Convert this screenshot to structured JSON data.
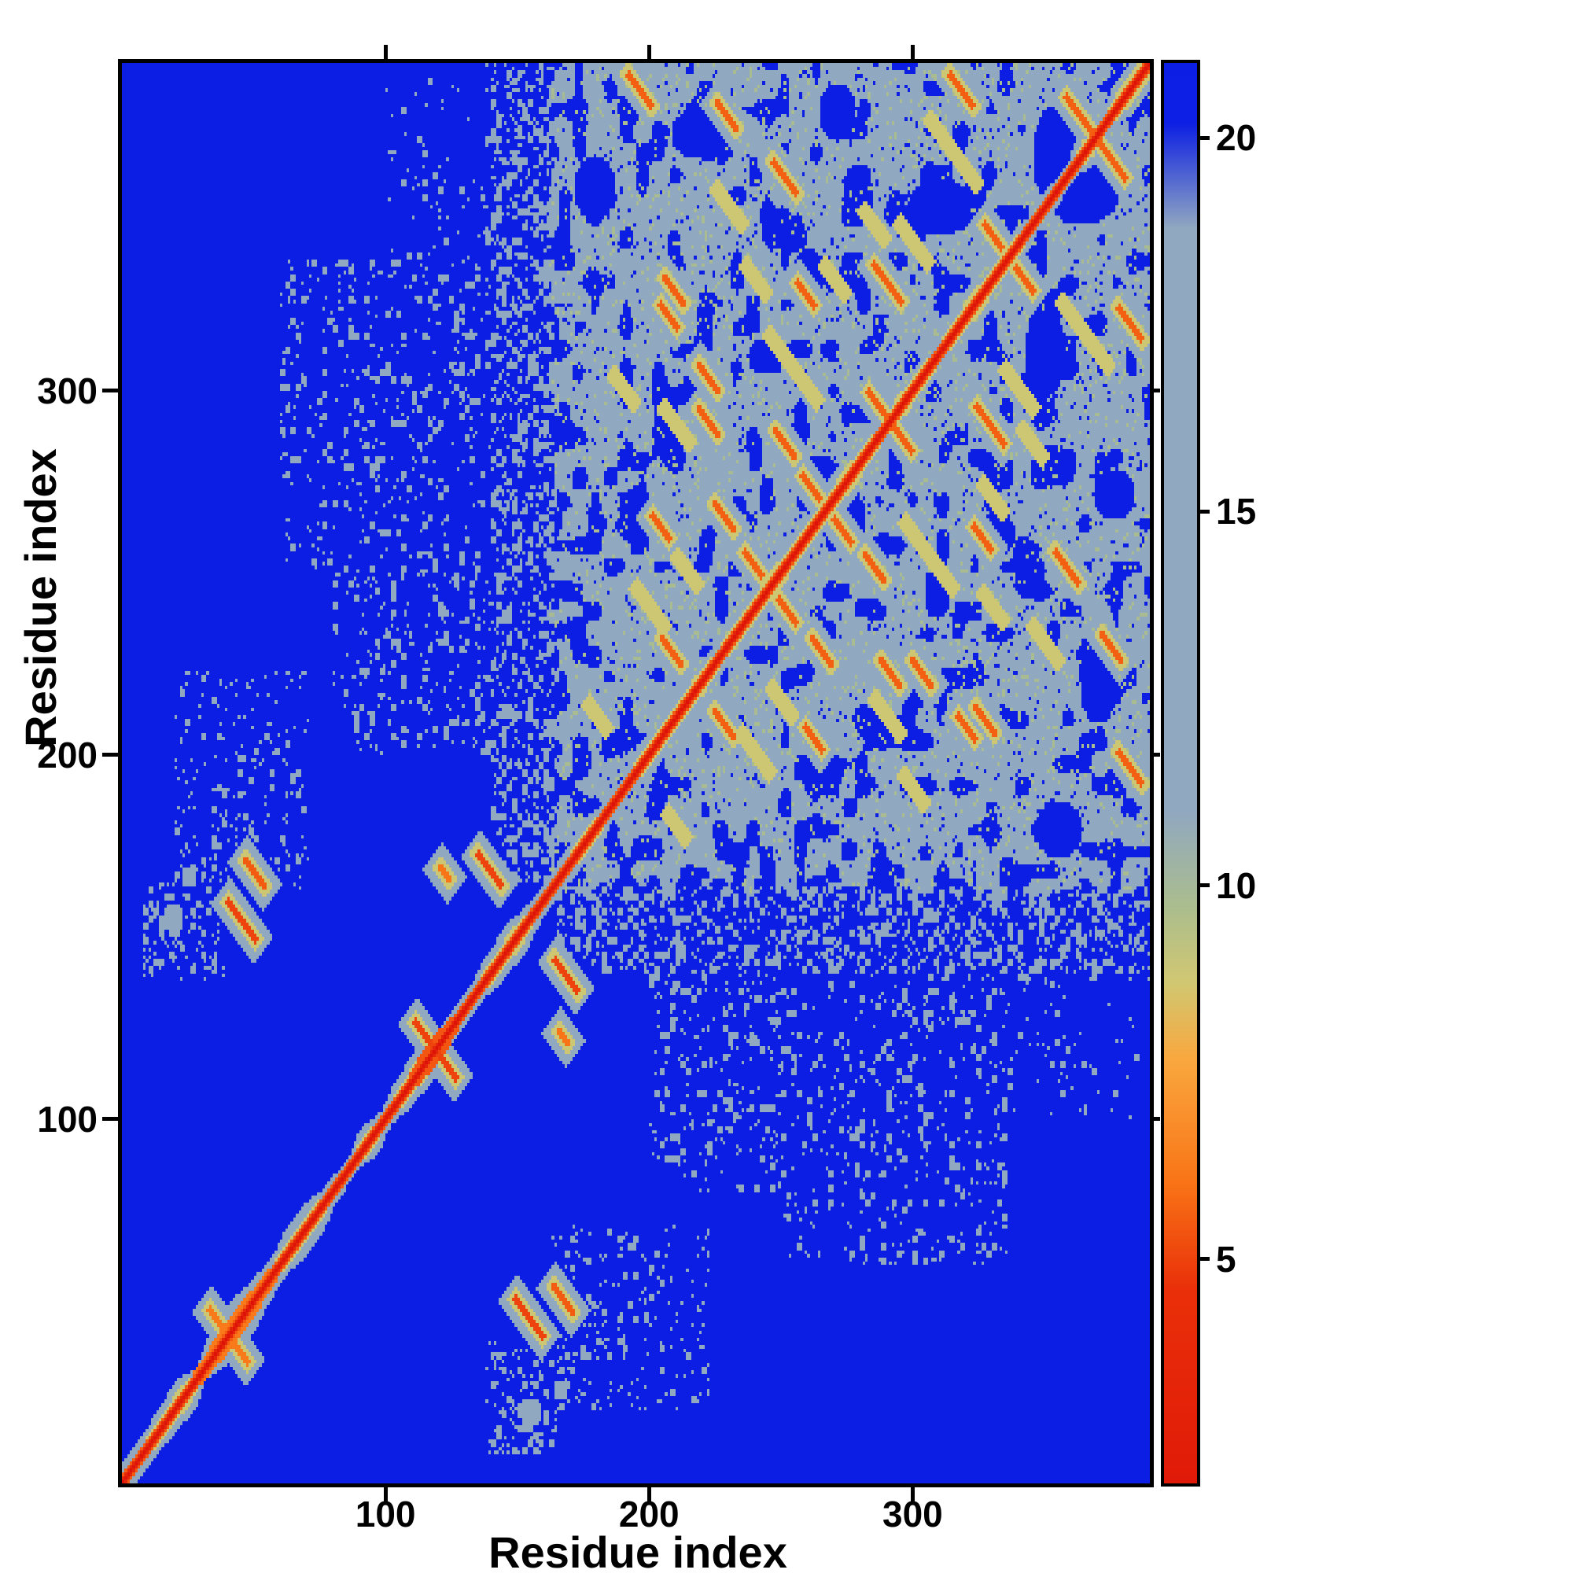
{
  "figure": {
    "kind": "protein residue-residue distance map heatmap",
    "background": "#ffffff"
  },
  "chart_data": {
    "type": "heatmap",
    "title": "",
    "xlabel": "Residue index",
    "ylabel": "Residue index",
    "x_range": [
      0,
      390
    ],
    "y_range": [
      0,
      390
    ],
    "x_ticks": [
      100,
      200,
      300
    ],
    "y_ticks": [
      100,
      200,
      300
    ],
    "grid": false,
    "legend": "colorbar right",
    "value_semantics": "pairwise residue distance; red = small (diagonal), deep blue = large/background, light steel = intermediate folded-domain contacts",
    "colorbar": {
      "orientation": "vertical",
      "position": "right",
      "range_top": 21,
      "range_bottom": 2,
      "ticks": [
        5,
        10,
        15,
        20
      ]
    },
    "colormap_stops": [
      [
        1,
        [
          221,
          18,
          8
        ]
      ],
      [
        4.6,
        [
          234,
          48,
          10
        ]
      ],
      [
        6,
        [
          249,
          116,
          22
        ]
      ],
      [
        7.7,
        [
          249,
          169,
          64
        ]
      ],
      [
        8.7,
        [
          209,
          200,
          114
        ]
      ],
      [
        9.7,
        [
          172,
          190,
          142
        ]
      ],
      [
        11,
        [
          145,
          168,
          193
        ]
      ],
      [
        18.8,
        [
          145,
          168,
          193
        ]
      ],
      [
        20.2,
        [
          14,
          32,
          228
        ]
      ],
      [
        24,
        [
          10,
          26,
          230
        ]
      ]
    ],
    "matrix": {
      "n": 390,
      "symmetric": true,
      "background_value": 22,
      "noise_seed": 7,
      "diagonal_core": 1,
      "speckle_value": 15.2,
      "domain_block": {
        "start": 163,
        "base_value": 15,
        "hole_threshold": 0.66
      },
      "halo_blobs": [
        [
          3,
          22,
          6,
          0
        ],
        [
          25,
          60,
          9,
          6.2
        ],
        [
          108,
          128,
          6,
          5.4
        ],
        [
          146,
          165,
          5,
          0
        ]
      ],
      "holes": [
        [
          364,
          356,
          15,
          11
        ],
        [
          310,
          350,
          12,
          8
        ],
        [
          264,
          274,
          9,
          8
        ],
        [
          179,
          355,
          8,
          9
        ],
        [
          376,
          271,
          8,
          7
        ],
        [
          218,
          370,
          10,
          7
        ],
        [
          244,
          309,
          7,
          5
        ],
        [
          330,
          260,
          9,
          6
        ],
        [
          345,
          300,
          7,
          5
        ]
      ],
      "streaks": [
        [
          318,
          382,
          7
        ],
        [
          363,
          375,
          8
        ],
        [
          290,
          329,
          8
        ],
        [
          330,
          342,
          5
        ],
        [
          207,
          320,
          5
        ],
        [
          259,
          326,
          5
        ],
        [
          222,
          291,
          6
        ],
        [
          286,
          296,
          5
        ],
        [
          228,
          265,
          6
        ],
        [
          261,
          273,
          5
        ],
        [
          208,
          228,
          6
        ],
        [
          239,
          252,
          5
        ],
        [
          251,
          285,
          6
        ],
        [
          222,
          303,
          6
        ],
        [
          251,
          358,
          7
        ],
        [
          229,
          375,
          6
        ],
        [
          209,
          327,
          6
        ],
        [
          196,
          382,
          7
        ],
        [
          204,
          262,
          5
        ]
      ],
      "green_streaks": [
        [
          200,
          240,
          8
        ],
        [
          214,
          250,
          6
        ],
        [
          300,
          340,
          8
        ],
        [
          250,
          310,
          7
        ],
        [
          230,
          350,
          7
        ],
        [
          270,
          330,
          6
        ],
        [
          180,
          210,
          5
        ],
        [
          320,
          360,
          6
        ],
        [
          240,
          330,
          6
        ],
        [
          210,
          290,
          7
        ],
        [
          310,
          370,
          6
        ],
        [
          260,
          300,
          5
        ],
        [
          190,
          300,
          6
        ],
        [
          285,
          345,
          6
        ]
      ],
      "tail_streaks": [
        [
          45,
          154,
          8,
          5
        ],
        [
          50,
          167,
          6,
          5.5
        ],
        [
          139,
          168,
          7,
          5
        ],
        [
          114,
          123,
          5,
          5
        ],
        [
          122,
          167,
          3,
          6
        ],
        [
          36,
          44,
          5,
          6.2
        ]
      ],
      "tail_blobs": [
        [
          19,
          155,
          4,
          14.5
        ],
        [
          25,
          166,
          3,
          15
        ]
      ],
      "speckle_rects": [
        [
          140,
          163,
          165,
          390,
          0.3
        ],
        [
          60,
          160,
          250,
          335,
          0.1
        ],
        [
          88,
          162,
          200,
          250,
          0.13
        ],
        [
          210,
          265,
          80,
          140,
          0.09
        ],
        [
          163,
          222,
          20,
          70,
          0.1
        ],
        [
          100,
          140,
          335,
          390,
          0.05
        ],
        [
          8,
          38,
          138,
          165,
          0.18
        ],
        [
          290,
          332,
          100,
          141,
          0.06
        ],
        [
          108,
          132,
          270,
          330,
          0.08
        ]
      ]
    }
  }
}
